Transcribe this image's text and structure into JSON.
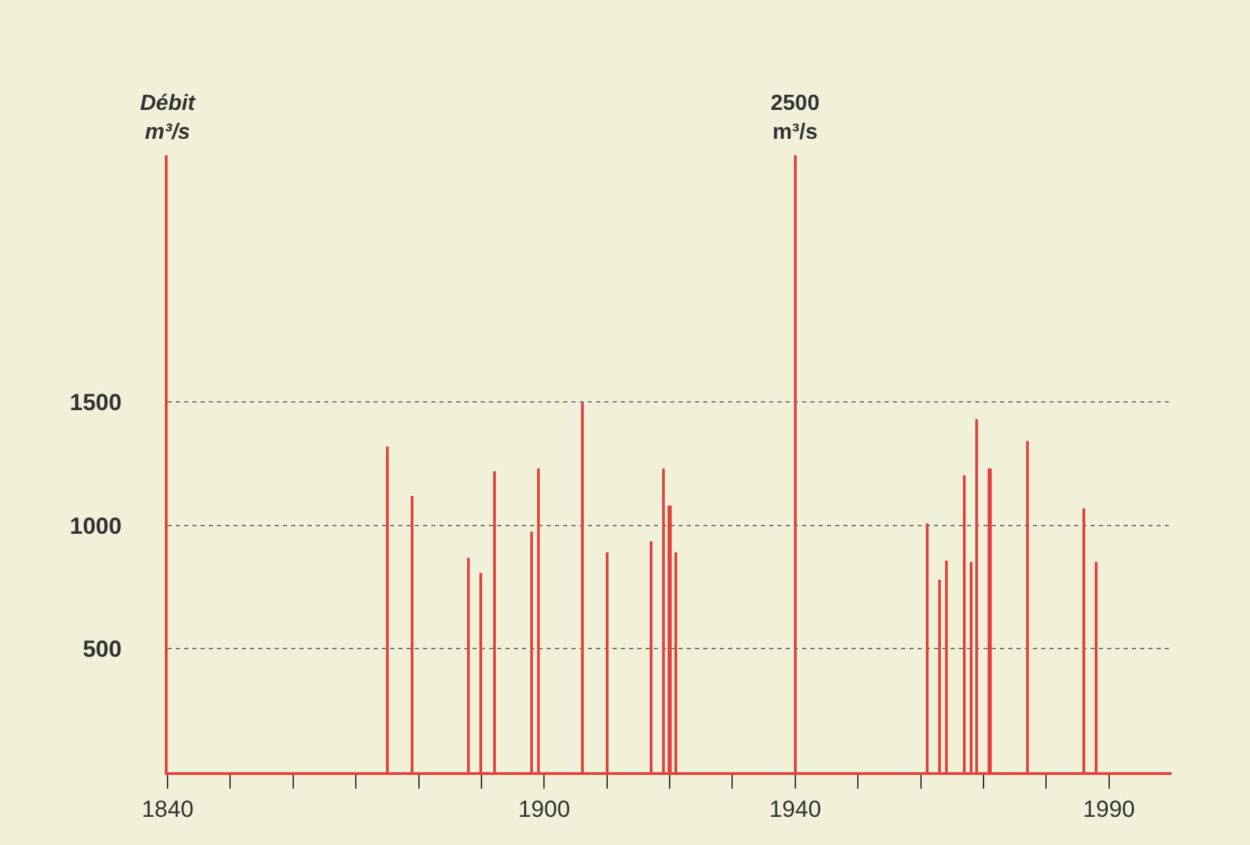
{
  "chart_data": {
    "type": "bar",
    "ylabel": "Débit\nm³/s",
    "x": [
      1875,
      1879,
      1888,
      1890,
      1892,
      1898,
      1899,
      1906,
      1910,
      1917,
      1919,
      1920,
      1921,
      1940,
      1961,
      1963,
      1964,
      1967,
      1968,
      1969,
      1971,
      1977,
      1986,
      1988
    ],
    "values": [
      1320,
      1120,
      870,
      810,
      1220,
      975,
      1230,
      1500,
      890,
      935,
      1230,
      1080,
      890,
      2500,
      1010,
      780,
      860,
      1200,
      850,
      1430,
      1230,
      1340,
      1070,
      850
    ],
    "color": "#e8413c",
    "xlim": [
      1840,
      2000
    ],
    "xticks": [
      1840,
      {
        "value": 1850,
        "label": null
      },
      {
        "value": 1860,
        "label": null
      },
      {
        "value": 1870,
        "label": null
      },
      {
        "value": 1880,
        "label": null
      },
      {
        "value": 1890,
        "label": null
      },
      1900,
      {
        "value": 1910,
        "label": null
      },
      {
        "value": 1920,
        "label": null
      },
      {
        "value": 1930,
        "label": null
      },
      1940,
      {
        "value": 1950,
        "label": null
      },
      {
        "value": 1960,
        "label": null
      },
      {
        "value": 1970,
        "label": null
      },
      {
        "value": 1980,
        "label": null
      },
      1990
    ],
    "ylim": [
      0,
      2500
    ],
    "yticks": [
      500,
      1000,
      1500
    ],
    "grid": "y",
    "annotations": [
      {
        "text": "2500\nm³/s",
        "x": 1940,
        "y": 2500
      }
    ]
  }
}
